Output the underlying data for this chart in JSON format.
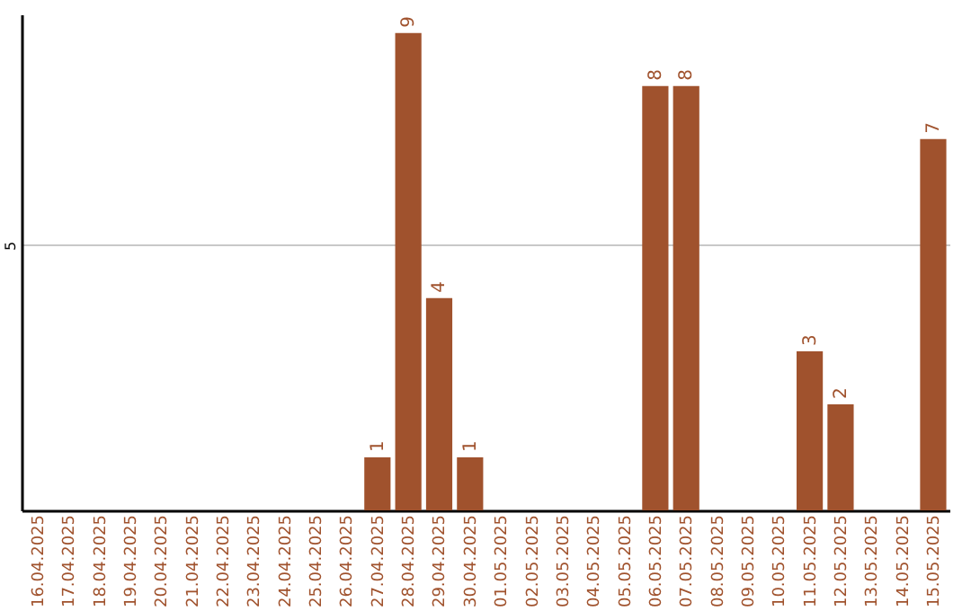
{
  "chart_data": {
    "type": "bar",
    "categories": [
      "16.04.2025",
      "17.04.2025",
      "18.04.2025",
      "19.04.2025",
      "20.04.2025",
      "21.04.2025",
      "22.04.2025",
      "23.04.2025",
      "24.04.2025",
      "25.04.2025",
      "26.04.2025",
      "27.04.2025",
      "28.04.2025",
      "29.04.2025",
      "30.04.2025",
      "01.05.2025",
      "02.05.2025",
      "03.05.2025",
      "04.05.2025",
      "05.05.2025",
      "06.05.2025",
      "07.05.2025",
      "08.05.2025",
      "09.05.2025",
      "10.05.2025",
      "11.05.2025",
      "12.05.2025",
      "13.05.2025",
      "14.05.2025",
      "15.05.2025"
    ],
    "values": [
      0,
      0,
      0,
      0,
      0,
      0,
      0,
      0,
      0,
      0,
      0,
      1,
      9,
      4,
      1,
      0,
      0,
      0,
      0,
      0,
      8,
      8,
      0,
      0,
      0,
      3,
      2,
      0,
      0,
      7
    ],
    "value_labels": [
      null,
      null,
      null,
      null,
      null,
      null,
      null,
      null,
      null,
      null,
      null,
      "1",
      "9",
      "4",
      "1",
      null,
      null,
      null,
      null,
      null,
      "8",
      "8",
      null,
      null,
      null,
      "3",
      "2",
      null,
      null,
      "7"
    ],
    "color": "#a0522d",
    "ylim": [
      0,
      9.35
    ],
    "yticks": [
      5
    ],
    "grid": "y"
  }
}
